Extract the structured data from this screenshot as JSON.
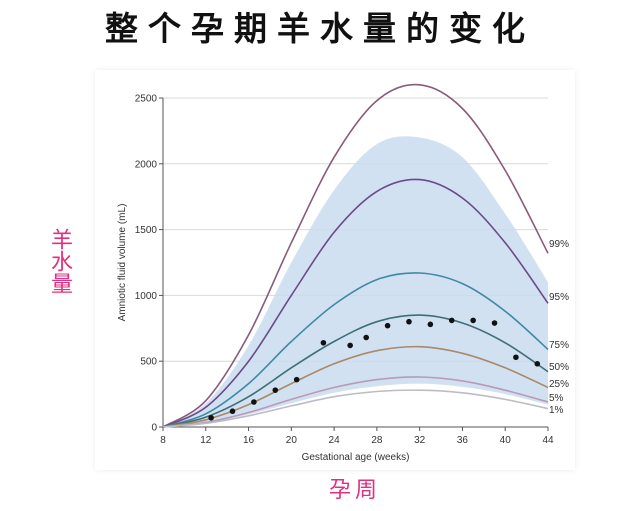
{
  "header": {
    "title": "整个孕期羊水量的变化"
  },
  "annotations": {
    "y_cn": "羊水量",
    "x_cn": "孕周"
  },
  "colors": {
    "band": "#c9dcef",
    "grid": "#d9d9d9",
    "p99": "#8a5a7a",
    "p95": "#6a4a88",
    "p75": "#3f8aa3",
    "p50": "#3e6f78",
    "p25": "#a88a6a",
    "p5": "#b79ab8",
    "p1": "#bcbcc8",
    "points": "#111111",
    "title_accent": "#e0307f"
  },
  "chart_data": {
    "type": "line",
    "xlabel": "Gestational age (weeks)",
    "ylabel": "Amniotic fluid volume (mL)",
    "xlim": [
      8,
      44
    ],
    "ylim": [
      0,
      2500
    ],
    "x_ticks": [
      8,
      12,
      16,
      20,
      24,
      28,
      32,
      36,
      40,
      44
    ],
    "y_ticks": [
      0,
      500,
      1000,
      1500,
      2000,
      2500
    ],
    "grid": "horizontal",
    "x": [
      8,
      12,
      16,
      20,
      24,
      28,
      32,
      36,
      40,
      44
    ],
    "series": [
      {
        "name": "99%",
        "values": [
          0,
          200,
          700,
          1400,
          2050,
          2480,
          2600,
          2420,
          1950,
          1320
        ]
      },
      {
        "name": "95%",
        "values": [
          0,
          150,
          500,
          1000,
          1480,
          1790,
          1880,
          1740,
          1400,
          940
        ]
      },
      {
        "name": "75%",
        "values": [
          0,
          100,
          330,
          650,
          930,
          1120,
          1170,
          1090,
          880,
          590
        ]
      },
      {
        "name": "50%",
        "values": [
          0,
          75,
          230,
          450,
          650,
          800,
          850,
          790,
          640,
          420
        ]
      },
      {
        "name": "25%",
        "values": [
          0,
          55,
          170,
          330,
          480,
          580,
          610,
          560,
          450,
          300
        ]
      },
      {
        "name": "5%",
        "values": [
          0,
          35,
          110,
          210,
          300,
          360,
          380,
          350,
          280,
          190
        ]
      },
      {
        "name": "1%",
        "values": [
          0,
          28,
          85,
          160,
          230,
          270,
          280,
          260,
          210,
          140
        ]
      }
    ],
    "band": {
      "upper": [
        0,
        180,
        620,
        1250,
        1800,
        2150,
        2200,
        2050,
        1620,
        1100
      ],
      "lower": [
        0,
        30,
        95,
        180,
        260,
        310,
        330,
        305,
        250,
        170
      ]
    },
    "points": [
      {
        "x": 12.5,
        "y": 70
      },
      {
        "x": 14.5,
        "y": 120
      },
      {
        "x": 16.5,
        "y": 190
      },
      {
        "x": 18.5,
        "y": 280
      },
      {
        "x": 20.5,
        "y": 360
      },
      {
        "x": 23,
        "y": 640
      },
      {
        "x": 25.5,
        "y": 620
      },
      {
        "x": 27,
        "y": 680
      },
      {
        "x": 29,
        "y": 770
      },
      {
        "x": 31,
        "y": 800
      },
      {
        "x": 33,
        "y": 780
      },
      {
        "x": 35,
        "y": 810
      },
      {
        "x": 37,
        "y": 810
      },
      {
        "x": 39,
        "y": 790
      },
      {
        "x": 41,
        "y": 530
      },
      {
        "x": 43,
        "y": 480
      }
    ]
  }
}
